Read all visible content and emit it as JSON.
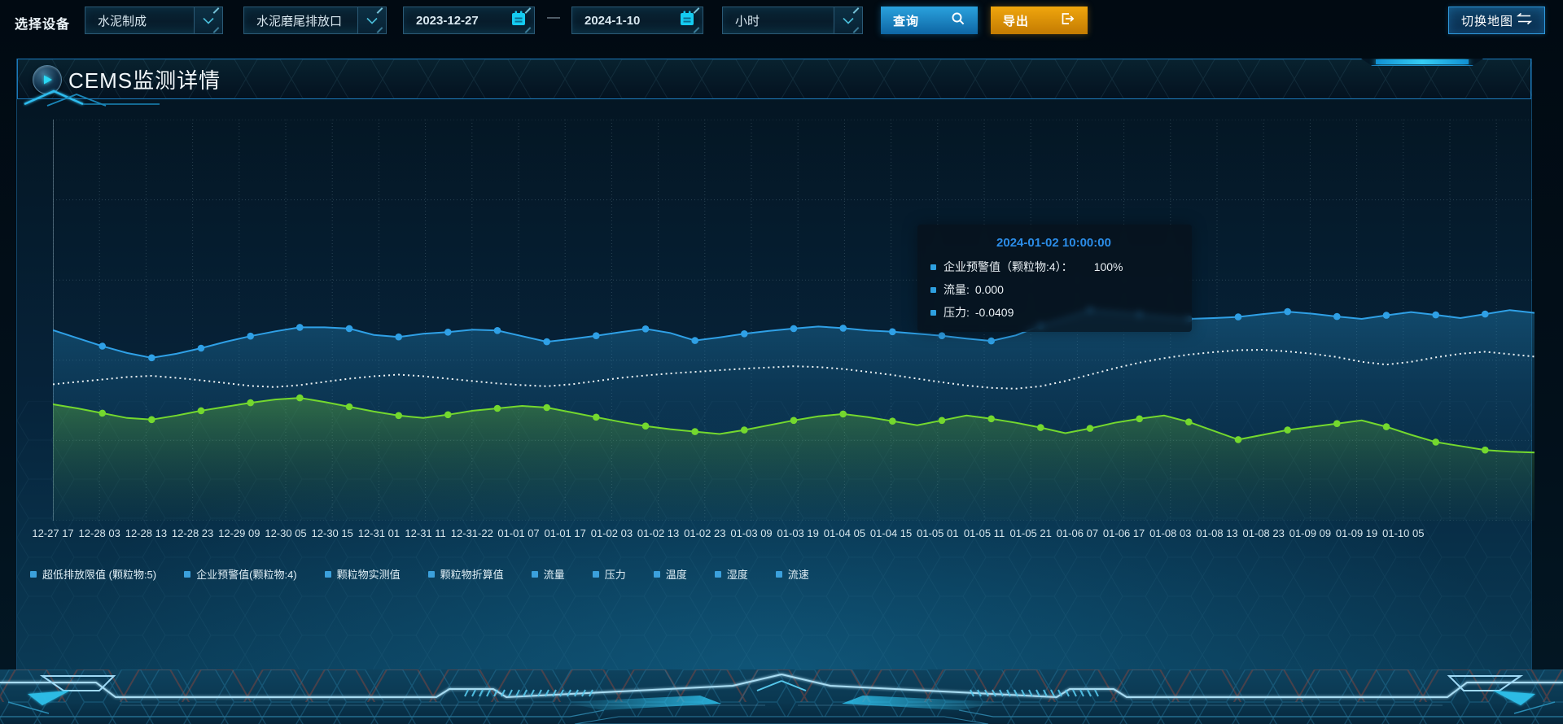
{
  "toolbar": {
    "device_label": "选择设备",
    "device_category": "水泥制成",
    "device_outlet": "水泥磨尾排放口",
    "date_start": "2023-12-27",
    "date_separator": "—",
    "date_end": "2024-1-10",
    "granularity": "小时",
    "query_label": "查询",
    "export_label": "导出",
    "switch_map_label": "切换地图"
  },
  "panel": {
    "title": "CEMS监测详情"
  },
  "tooltip": {
    "title": "2024-01-02 10:00:00",
    "rows": [
      {
        "label": "企业预警值（颗粒物:4）：",
        "value": "100%"
      },
      {
        "label": "流量:",
        "value": "0.000"
      },
      {
        "label": "压力:",
        "value": "-0.0409"
      }
    ]
  },
  "legend": {
    "items": [
      "超低排放限值 (颗粒物:5)",
      "企业预警值(颗粒物:4)",
      "颗粒物实测值",
      "颗粒物折算值",
      "流量",
      "压力",
      "温度",
      "湿度",
      "流速"
    ]
  },
  "colors": {
    "accent_blue": "#2aa2e8",
    "line_green": "#74d82e",
    "line_white": "#eef4f6",
    "export_orange": "#e79b10",
    "tooltip_title_blue": "#2b8de8",
    "legend_marker_blue": "#3ba0dc"
  },
  "chart_data": {
    "type": "line",
    "title": "CEMS监测详情",
    "x_labels": [
      "12-27 17",
      "12-28 03",
      "12-28 13",
      "12-28 23",
      "12-29 09",
      "12-30 05",
      "12-30 15",
      "12-31 01",
      "12-31 11",
      "12-31-22",
      "01-01 07",
      "01-01 17",
      "01-02 03",
      "01-02 13",
      "01-02 23",
      "01-03 09",
      "01-03 19",
      "01-04 05",
      "01-04 15",
      "01-05 01",
      "01-05 11",
      "01-05 21",
      "01-06 07",
      "01-06 17",
      "01-08 03",
      "01-08 13",
      "01-08 23",
      "01-09 09",
      "01-09 19",
      "01-10 05"
    ],
    "ylim": [
      0,
      100
    ],
    "y_axis_visible": false,
    "grid": true,
    "legend_position": "bottom",
    "note": "values are percent of plot height (hidden y axis), estimated from pixels",
    "series": [
      {
        "key": "warning",
        "name": "企业预警值(颗粒物:4)",
        "color": "#2fa0e6",
        "style": "solid",
        "markers": true,
        "area": "area-blue",
        "dashed": false,
        "values": [
          47.5,
          45.5,
          43.5,
          41.8,
          40.6,
          41.6,
          43.0,
          44.6,
          46.0,
          47.2,
          48.2,
          48.2,
          47.9,
          46.3,
          45.8,
          46.6,
          47.0,
          47.6,
          47.4,
          46.0,
          44.6,
          45.3,
          46.1,
          47.0,
          47.8,
          46.8,
          44.9,
          45.7,
          46.6,
          47.3,
          47.9,
          48.4,
          48.0,
          47.4,
          47.1,
          46.6,
          46.1,
          45.4,
          44.8,
          46.2,
          48.6,
          50.4,
          52.5,
          52.0,
          51.4,
          50.8,
          50.3,
          50.5,
          50.8,
          51.5,
          52.1,
          51.6,
          50.9,
          50.3,
          51.2,
          52.0,
          51.3,
          50.5,
          51.5,
          52.5,
          51.8
        ]
      },
      {
        "key": "limit",
        "name": "超低排放限值 (颗粒物:5)",
        "color": "#eef4f6",
        "style": "dotted",
        "markers": false,
        "area": "none",
        "dashed": true,
        "values": [
          34.0,
          34.6,
          35.2,
          35.8,
          36.1,
          35.6,
          35.0,
          34.3,
          33.6,
          33.3,
          33.8,
          34.6,
          35.4,
          36.0,
          36.4,
          36.0,
          35.4,
          34.8,
          34.2,
          33.8,
          33.5,
          34.0,
          34.8,
          35.6,
          36.2,
          36.7,
          37.1,
          37.5,
          37.9,
          38.2,
          38.5,
          38.3,
          37.8,
          37.1,
          36.3,
          35.4,
          34.5,
          33.7,
          33.1,
          32.9,
          33.5,
          34.8,
          36.4,
          38.0,
          39.4,
          40.5,
          41.4,
          42.0,
          42.5,
          42.6,
          42.2,
          41.6,
          40.8,
          39.6,
          38.9,
          39.6,
          40.7,
          41.6,
          42.1,
          41.5,
          40.9
        ]
      },
      {
        "key": "measured",
        "name": "颗粒物实测值",
        "color": "#74d82e",
        "style": "solid",
        "markers": true,
        "area": "area-green",
        "dashed": false,
        "values": [
          29.0,
          28.0,
          26.8,
          25.6,
          25.2,
          26.2,
          27.4,
          28.4,
          29.4,
          30.2,
          30.6,
          29.6,
          28.4,
          27.2,
          26.2,
          25.6,
          26.4,
          27.4,
          28.0,
          28.6,
          28.2,
          27.0,
          25.8,
          24.6,
          23.6,
          22.8,
          22.2,
          21.6,
          22.6,
          23.8,
          25.0,
          26.0,
          26.6,
          25.8,
          24.8,
          23.8,
          25.0,
          26.2,
          25.4,
          24.4,
          23.2,
          21.8,
          23.0,
          24.4,
          25.4,
          26.2,
          24.6,
          22.4,
          20.2,
          21.4,
          22.6,
          23.4,
          24.2,
          25.0,
          23.4,
          21.4,
          19.6,
          18.6,
          17.6,
          17.2,
          17.0
        ]
      }
    ]
  }
}
